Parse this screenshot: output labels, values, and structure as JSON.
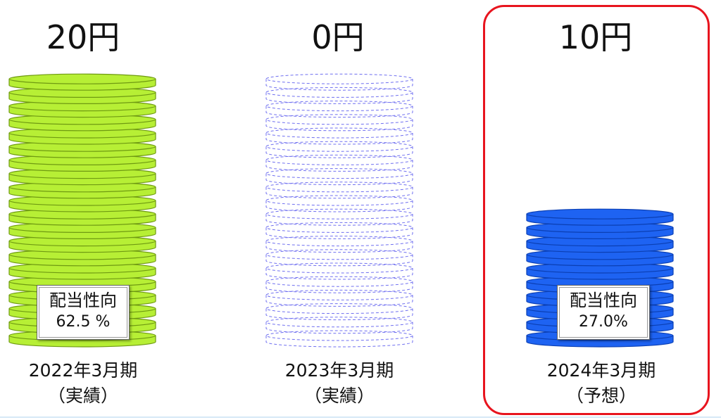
{
  "chart_data": {
    "type": "bar",
    "unit": "円",
    "categories": [
      "2022年3月期",
      "2023年3月期",
      "2024年3月期"
    ],
    "category_notes": [
      "（実績）",
      "（実績）",
      "（予想）"
    ],
    "values": [
      20,
      0,
      10
    ],
    "value_labels": [
      "20円",
      "0円",
      "10円"
    ],
    "payout_ratio_label": "配当性向",
    "payout_ratios": [
      "62.5 %",
      "",
      "27.0%"
    ],
    "colors": {
      "actual_fill": "#b7ef35",
      "actual_stroke": "#6f9a12",
      "forecast_fill": "#1e63f2",
      "forecast_stroke": "#0b3fb3",
      "zero_outline": "#6f6ff0",
      "highlight": "#e8141e"
    }
  }
}
